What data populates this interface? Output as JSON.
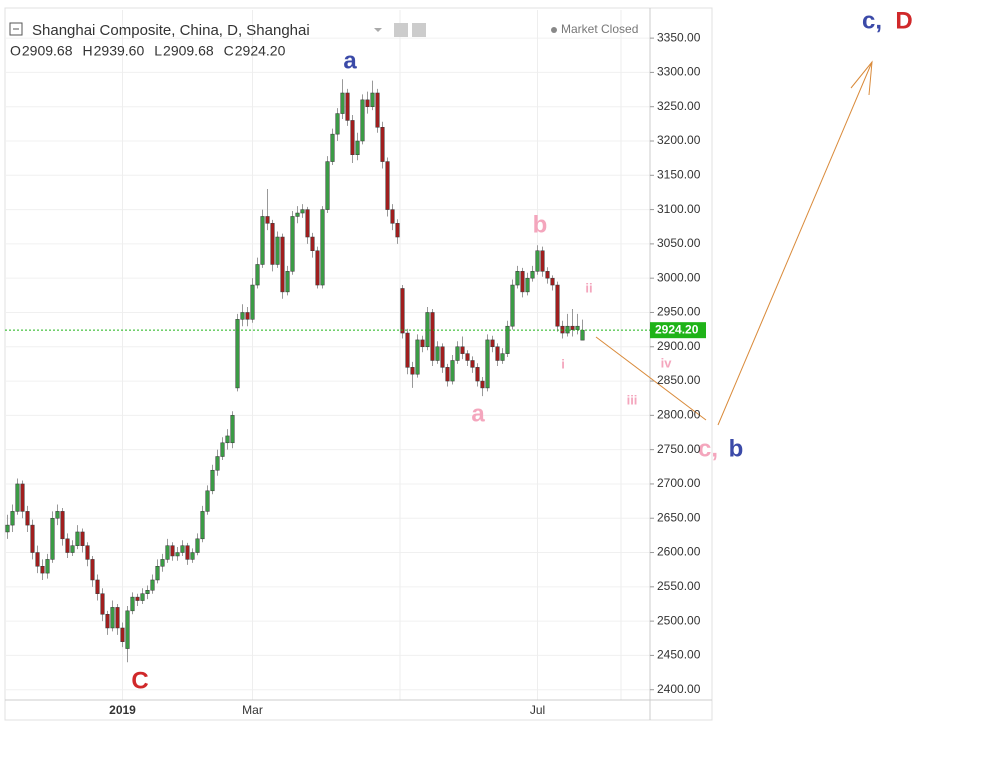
{
  "chart_data": {
    "type": "candlestick",
    "title": "Shanghai Composite, China, D, Shanghai",
    "status": "Market Closed",
    "ohlc_letters": [
      "O",
      "H",
      "L",
      "C"
    ],
    "last_value_labels": [
      "2909.68",
      "2939.60",
      "2909.68",
      "2924.20"
    ],
    "up_color": "#3b9b45",
    "down_color": "#a01e1e",
    "last_line_color": "#1fb318",
    "grid": true,
    "ylim": [
      2385,
      3391
    ],
    "yticks": [
      {
        "value": 2400,
        "label": "2400.00"
      },
      {
        "value": 2450,
        "label": "2450.00"
      },
      {
        "value": 2500,
        "label": "2500.00"
      },
      {
        "value": 2550,
        "label": "2550.00"
      },
      {
        "value": 2600,
        "label": "2600.00"
      },
      {
        "value": 2650,
        "label": "2650.00"
      },
      {
        "value": 2700,
        "label": "2700.00"
      },
      {
        "value": 2750,
        "label": "2750.00"
      },
      {
        "value": 2800,
        "label": "2800.00"
      },
      {
        "value": 2850,
        "label": "2850.00"
      },
      {
        "value": 2900,
        "label": "2900.00"
      },
      {
        "value": 2950,
        "label": "2950.00"
      },
      {
        "value": 3000,
        "label": "3000.00"
      },
      {
        "value": 3050,
        "label": "3050.00"
      },
      {
        "value": 3100,
        "label": "3100.00"
      },
      {
        "value": 3150,
        "label": "3150.00"
      },
      {
        "value": 3200,
        "label": "3200.00"
      },
      {
        "value": 3250,
        "label": "3250.00"
      },
      {
        "value": 3300,
        "label": "3300.00"
      },
      {
        "value": 3350,
        "label": "3350.00"
      }
    ],
    "xlim": [
      -0.5,
      128.5
    ],
    "xticks": [
      {
        "value": 23,
        "label": "2019"
      },
      {
        "value": 49,
        "label": "Mar"
      },
      {
        "value": 106,
        "label": "Jul"
      }
    ],
    "candles": [
      [
        2630,
        2655,
        2620,
        2640
      ],
      [
        2640,
        2670,
        2630,
        2660
      ],
      [
        2660,
        2708,
        2655,
        2700
      ],
      [
        2700,
        2705,
        2650,
        2660
      ],
      [
        2660,
        2668,
        2630,
        2640
      ],
      [
        2640,
        2648,
        2590,
        2600
      ],
      [
        2600,
        2610,
        2570,
        2580
      ],
      [
        2580,
        2590,
        2560,
        2570
      ],
      [
        2570,
        2598,
        2562,
        2590
      ],
      [
        2590,
        2660,
        2585,
        2650
      ],
      [
        2650,
        2670,
        2640,
        2660
      ],
      [
        2660,
        2665,
        2610,
        2620
      ],
      [
        2620,
        2628,
        2592,
        2600
      ],
      [
        2600,
        2618,
        2595,
        2610
      ],
      [
        2610,
        2640,
        2605,
        2630
      ],
      [
        2630,
        2635,
        2600,
        2610
      ],
      [
        2610,
        2615,
        2580,
        2590
      ],
      [
        2590,
        2595,
        2550,
        2560
      ],
      [
        2560,
        2568,
        2530,
        2540
      ],
      [
        2540,
        2548,
        2500,
        2510
      ],
      [
        2510,
        2515,
        2480,
        2490
      ],
      [
        2490,
        2530,
        2485,
        2520
      ],
      [
        2520,
        2525,
        2480,
        2490
      ],
      [
        2490,
        2498,
        2462,
        2470
      ],
      [
        2460,
        2522,
        2440,
        2515
      ],
      [
        2515,
        2542,
        2510,
        2535
      ],
      [
        2535,
        2540,
        2522,
        2530
      ],
      [
        2530,
        2548,
        2525,
        2540
      ],
      [
        2540,
        2552,
        2532,
        2545
      ],
      [
        2545,
        2568,
        2540,
        2560
      ],
      [
        2560,
        2590,
        2555,
        2580
      ],
      [
        2580,
        2598,
        2572,
        2590
      ],
      [
        2590,
        2620,
        2585,
        2610
      ],
      [
        2610,
        2615,
        2588,
        2595
      ],
      [
        2595,
        2608,
        2588,
        2600
      ],
      [
        2600,
        2618,
        2595,
        2610
      ],
      [
        2610,
        2614,
        2582,
        2590
      ],
      [
        2590,
        2606,
        2585,
        2600
      ],
      [
        2600,
        2628,
        2596,
        2620
      ],
      [
        2620,
        2668,
        2615,
        2660
      ],
      [
        2660,
        2698,
        2655,
        2690
      ],
      [
        2690,
        2728,
        2685,
        2720
      ],
      [
        2720,
        2750,
        2712,
        2740
      ],
      [
        2740,
        2768,
        2735,
        2760
      ],
      [
        2760,
        2780,
        2750,
        2770
      ],
      [
        2760,
        2806,
        2752,
        2800
      ],
      [
        2840,
        2948,
        2835,
        2940
      ],
      [
        2940,
        2962,
        2930,
        2950
      ],
      [
        2950,
        2958,
        2930,
        2940
      ],
      [
        2940,
        3000,
        2935,
        2990
      ],
      [
        2990,
        3030,
        2985,
        3020
      ],
      [
        3020,
        3100,
        3015,
        3090
      ],
      [
        3090,
        3130,
        3070,
        3080
      ],
      [
        3080,
        3085,
        3010,
        3020
      ],
      [
        3020,
        3068,
        3015,
        3060
      ],
      [
        3060,
        3065,
        2970,
        2980
      ],
      [
        2980,
        3018,
        2975,
        3010
      ],
      [
        3010,
        3098,
        3005,
        3090
      ],
      [
        3090,
        3105,
        3080,
        3095
      ],
      [
        3095,
        3108,
        3088,
        3100
      ],
      [
        3100,
        3104,
        3050,
        3060
      ],
      [
        3060,
        3066,
        3030,
        3040
      ],
      [
        3040,
        3046,
        2985,
        2990
      ],
      [
        2990,
        3105,
        2985,
        3100
      ],
      [
        3100,
        3178,
        3095,
        3170
      ],
      [
        3170,
        3218,
        3165,
        3210
      ],
      [
        3210,
        3248,
        3200,
        3240
      ],
      [
        3240,
        3290,
        3232,
        3270
      ],
      [
        3270,
        3276,
        3222,
        3230
      ],
      [
        3230,
        3238,
        3168,
        3180
      ],
      [
        3180,
        3212,
        3172,
        3200
      ],
      [
        3200,
        3268,
        3195,
        3260
      ],
      [
        3260,
        3272,
        3240,
        3250
      ],
      [
        3250,
        3288,
        3245,
        3270
      ],
      [
        3270,
        3276,
        3212,
        3220
      ],
      [
        3220,
        3228,
        3160,
        3170
      ],
      [
        3170,
        3176,
        3090,
        3100
      ],
      [
        3100,
        3108,
        3070,
        3080
      ],
      [
        3080,
        3086,
        3050,
        3060
      ],
      [
        2985,
        2990,
        2912,
        2920
      ],
      [
        2920,
        2926,
        2860,
        2870
      ],
      [
        2870,
        2878,
        2840,
        2860
      ],
      [
        2860,
        2918,
        2855,
        2910
      ],
      [
        2910,
        2916,
        2892,
        2900
      ],
      [
        2900,
        2958,
        2895,
        2950
      ],
      [
        2950,
        2955,
        2872,
        2880
      ],
      [
        2880,
        2908,
        2875,
        2900
      ],
      [
        2900,
        2905,
        2862,
        2870
      ],
      [
        2870,
        2875,
        2842,
        2850
      ],
      [
        2850,
        2888,
        2845,
        2880
      ],
      [
        2880,
        2908,
        2875,
        2900
      ],
      [
        2900,
        2915,
        2882,
        2890
      ],
      [
        2890,
        2895,
        2872,
        2880
      ],
      [
        2880,
        2886,
        2862,
        2870
      ],
      [
        2870,
        2876,
        2842,
        2850
      ],
      [
        2850,
        2856,
        2828,
        2840
      ],
      [
        2840,
        2918,
        2835,
        2910
      ],
      [
        2910,
        2916,
        2892,
        2900
      ],
      [
        2900,
        2905,
        2872,
        2880
      ],
      [
        2880,
        2898,
        2875,
        2890
      ],
      [
        2890,
        2938,
        2885,
        2930
      ],
      [
        2930,
        2998,
        2925,
        2990
      ],
      [
        2990,
        3018,
        2985,
        3010
      ],
      [
        3010,
        3015,
        2972,
        2980
      ],
      [
        2980,
        3008,
        2975,
        3000
      ],
      [
        3000,
        3018,
        2995,
        3010
      ],
      [
        3010,
        3048,
        3005,
        3040
      ],
      [
        3040,
        3046,
        3002,
        3010
      ],
      [
        3010,
        3016,
        2992,
        3000
      ],
      [
        3000,
        3004,
        2982,
        2990
      ],
      [
        2990,
        2995,
        2922,
        2930
      ],
      [
        2930,
        2938,
        2912,
        2920
      ],
      [
        2920,
        2948,
        2915,
        2930
      ],
      [
        2930,
        2955,
        2915,
        2925
      ],
      [
        2925,
        2948,
        2918,
        2930
      ],
      [
        2909.68,
        2939.6,
        2909.68,
        2924.2
      ]
    ],
    "annotations": [
      {
        "text": "a",
        "color": "#3b4aa8"
      },
      {
        "text": "C",
        "color": "#d0282a"
      },
      {
        "text": "b",
        "color": "#f4a6bd"
      },
      {
        "text": "a",
        "color": "#f4a6bd"
      },
      {
        "text": "ii",
        "color": "#f4a6bd"
      },
      {
        "text": "i",
        "color": "#f4a6bd"
      },
      {
        "text": "iv",
        "color": "#f4a6bd"
      },
      {
        "text": "iii",
        "color": "#f4a6bd"
      },
      {
        "text": "c,",
        "color": "#f4a6bd"
      },
      {
        "text": "b",
        "color": "#3b4aa8"
      },
      {
        "text": "c,",
        "color": "#3b4aa8"
      },
      {
        "text": "D",
        "color": "#d0282a"
      }
    ]
  }
}
